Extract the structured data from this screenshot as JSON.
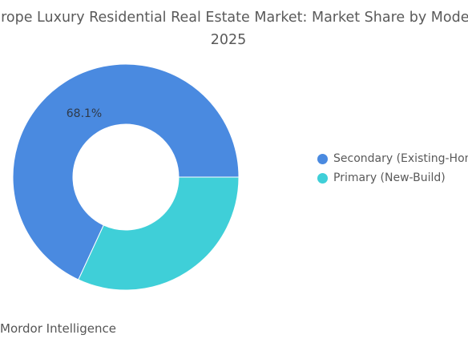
{
  "title_line1": "Europe Luxury Residential Real Estate Market: Market Share by Mode,",
  "title_line2": "2025",
  "source": "Mordor Intelligence",
  "colors": {
    "secondary": "#4a8ae0",
    "primary": "#3fcfd8"
  },
  "chart_data": {
    "type": "pie",
    "donut": true,
    "categories": [
      "Secondary (Existing-Home)",
      "Primary (New-Build)"
    ],
    "values": [
      68.1,
      31.9
    ],
    "data_labels": [
      "68.1%",
      ""
    ],
    "legend_position": "right"
  },
  "legend": [
    {
      "label": "Secondary (Existing-Home)"
    },
    {
      "label": "Primary (New-Build)"
    }
  ]
}
